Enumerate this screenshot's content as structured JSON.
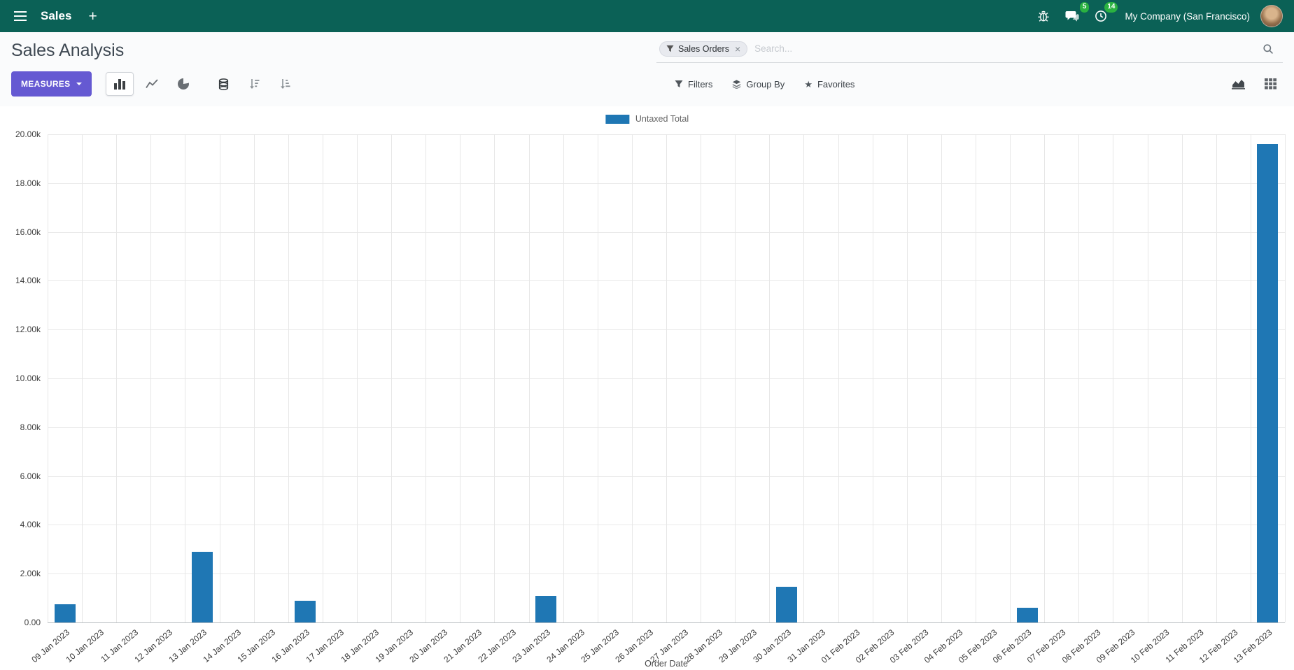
{
  "navbar": {
    "app_name": "Sales",
    "new_tab_label": "+",
    "messages_badge": "5",
    "activities_badge": "14",
    "company": "My Company (San Francisco)"
  },
  "control_panel": {
    "title": "Sales Analysis",
    "measures_label": "MEASURES",
    "search": {
      "facet_label": "Sales Orders",
      "remove_label": "×",
      "placeholder": "Search..."
    },
    "filters_label": "Filters",
    "group_by_label": "Group By",
    "favorites_label": "Favorites"
  },
  "icons": {
    "favorites_glyph": "★",
    "names": [
      "hamburger-icon",
      "bug-icon",
      "chat-bubble-icon",
      "clock-icon",
      "magnifier-icon",
      "funnel-icon",
      "layers-icon",
      "star-icon",
      "bar-chart-icon",
      "line-chart-icon",
      "pie-chart-icon",
      "database-icon",
      "sort-desc-icon",
      "sort-asc-icon",
      "area-chart-icon",
      "grid-icon",
      "caret-down-icon",
      "close-icon"
    ]
  },
  "chart_data": {
    "type": "bar",
    "title": "",
    "legend": [
      {
        "label": "Untaxed Total",
        "color": "#1f77b4"
      }
    ],
    "legend_position": "top-center",
    "grid": true,
    "xlabel": "Order Date",
    "ylabel": "",
    "ylim": [
      0,
      20000
    ],
    "ytick_step": 2000,
    "categories": [
      "09 Jan 2023",
      "10 Jan 2023",
      "11 Jan 2023",
      "12 Jan 2023",
      "13 Jan 2023",
      "14 Jan 2023",
      "15 Jan 2023",
      "16 Jan 2023",
      "17 Jan 2023",
      "18 Jan 2023",
      "19 Jan 2023",
      "20 Jan 2023",
      "21 Jan 2023",
      "22 Jan 2023",
      "23 Jan 2023",
      "24 Jan 2023",
      "25 Jan 2023",
      "26 Jan 2023",
      "27 Jan 2023",
      "28 Jan 2023",
      "29 Jan 2023",
      "30 Jan 2023",
      "31 Jan 2023",
      "01 Feb 2023",
      "02 Feb 2023",
      "03 Feb 2023",
      "04 Feb 2023",
      "05 Feb 2023",
      "06 Feb 2023",
      "07 Feb 2023",
      "08 Feb 2023",
      "09 Feb 2023",
      "10 Feb 2023",
      "11 Feb 2023",
      "12 Feb 2023",
      "13 Feb 2023"
    ],
    "values": [
      750,
      0,
      0,
      0,
      2900,
      0,
      0,
      900,
      0,
      0,
      0,
      0,
      0,
      0,
      1080,
      0,
      0,
      0,
      0,
      0,
      0,
      1450,
      0,
      0,
      0,
      0,
      0,
      0,
      600,
      0,
      0,
      0,
      0,
      0,
      0,
      19600
    ]
  }
}
